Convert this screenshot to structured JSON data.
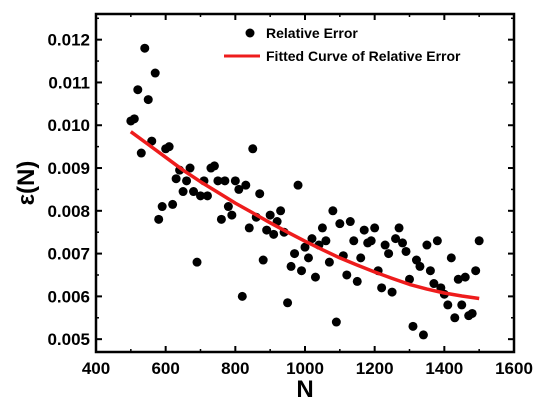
{
  "chart_data": {
    "type": "scatter",
    "xlabel": "N",
    "ylabel": "ε(N)",
    "xlim": [
      400,
      1600
    ],
    "ylim": [
      0.0047,
      0.0126
    ],
    "x_ticks": [
      400,
      600,
      800,
      1000,
      1200,
      1400,
      1600
    ],
    "x_tick_labels": [
      "400",
      "600",
      "800",
      "1000",
      "1200",
      "1400",
      "1600"
    ],
    "y_ticks": [
      0.005,
      0.006,
      0.007,
      0.008,
      0.009,
      0.01,
      0.011,
      0.012
    ],
    "y_tick_labels": [
      "0.005",
      "0.006",
      "0.007",
      "0.008",
      "0.009",
      "0.010",
      "0.011",
      "0.012"
    ],
    "grid": false,
    "legend_position": "top-right",
    "series": [
      {
        "name": "Relative Error",
        "kind": "scatter",
        "color": "#000000",
        "points": [
          [
            500,
            0.0101
          ],
          [
            510,
            0.01015
          ],
          [
            520,
            0.01083
          ],
          [
            530,
            0.00935
          ],
          [
            540,
            0.0118
          ],
          [
            550,
            0.0106
          ],
          [
            560,
            0.00963
          ],
          [
            570,
            0.01122
          ],
          [
            580,
            0.0078
          ],
          [
            590,
            0.0081
          ],
          [
            600,
            0.00945
          ],
          [
            610,
            0.0095
          ],
          [
            620,
            0.00815
          ],
          [
            630,
            0.00875
          ],
          [
            640,
            0.00895
          ],
          [
            650,
            0.00845
          ],
          [
            660,
            0.0087
          ],
          [
            670,
            0.009
          ],
          [
            680,
            0.00845
          ],
          [
            690,
            0.0068
          ],
          [
            700,
            0.00835
          ],
          [
            710,
            0.0087
          ],
          [
            720,
            0.00835
          ],
          [
            730,
            0.009
          ],
          [
            740,
            0.00905
          ],
          [
            750,
            0.0087
          ],
          [
            760,
            0.0078
          ],
          [
            770,
            0.0087
          ],
          [
            780,
            0.0081
          ],
          [
            790,
            0.0079
          ],
          [
            800,
            0.0087
          ],
          [
            810,
            0.0085
          ],
          [
            820,
            0.006
          ],
          [
            830,
            0.0086
          ],
          [
            840,
            0.0076
          ],
          [
            850,
            0.00945
          ],
          [
            860,
            0.00785
          ],
          [
            870,
            0.0084
          ],
          [
            880,
            0.00685
          ],
          [
            890,
            0.00755
          ],
          [
            900,
            0.0079
          ],
          [
            910,
            0.00745
          ],
          [
            920,
            0.00775
          ],
          [
            930,
            0.008
          ],
          [
            940,
            0.0075
          ],
          [
            950,
            0.00585
          ],
          [
            960,
            0.0067
          ],
          [
            970,
            0.007
          ],
          [
            980,
            0.0086
          ],
          [
            990,
            0.0066
          ],
          [
            1000,
            0.00715
          ],
          [
            1010,
            0.0069
          ],
          [
            1020,
            0.00735
          ],
          [
            1030,
            0.00645
          ],
          [
            1040,
            0.0072
          ],
          [
            1050,
            0.0076
          ],
          [
            1060,
            0.0073
          ],
          [
            1070,
            0.0068
          ],
          [
            1080,
            0.008
          ],
          [
            1090,
            0.0054
          ],
          [
            1100,
            0.0077
          ],
          [
            1110,
            0.00695
          ],
          [
            1120,
            0.0065
          ],
          [
            1130,
            0.00775
          ],
          [
            1140,
            0.0073
          ],
          [
            1150,
            0.00635
          ],
          [
            1160,
            0.0069
          ],
          [
            1170,
            0.00755
          ],
          [
            1180,
            0.00725
          ],
          [
            1190,
            0.0073
          ],
          [
            1200,
            0.0076
          ],
          [
            1210,
            0.0066
          ],
          [
            1220,
            0.0062
          ],
          [
            1230,
            0.0072
          ],
          [
            1240,
            0.007
          ],
          [
            1250,
            0.0061
          ],
          [
            1260,
            0.00735
          ],
          [
            1270,
            0.0076
          ],
          [
            1280,
            0.00725
          ],
          [
            1290,
            0.00705
          ],
          [
            1300,
            0.0064
          ],
          [
            1310,
            0.0053
          ],
          [
            1320,
            0.00685
          ],
          [
            1330,
            0.0067
          ],
          [
            1340,
            0.0051
          ],
          [
            1350,
            0.0072
          ],
          [
            1360,
            0.0066
          ],
          [
            1370,
            0.0063
          ],
          [
            1380,
            0.0073
          ],
          [
            1390,
            0.0062
          ],
          [
            1400,
            0.00605
          ],
          [
            1410,
            0.0058
          ],
          [
            1420,
            0.0069
          ],
          [
            1430,
            0.0055
          ],
          [
            1440,
            0.0064
          ],
          [
            1450,
            0.0058
          ],
          [
            1460,
            0.00645
          ],
          [
            1470,
            0.00555
          ],
          [
            1480,
            0.0056
          ],
          [
            1490,
            0.0066
          ],
          [
            1500,
            0.0073
          ]
        ]
      },
      {
        "name": "Fitted Curve of Relative Error",
        "kind": "line",
        "color": "#ee1c1c",
        "points": [
          [
            500,
            0.00985
          ],
          [
            550,
            0.00955
          ],
          [
            600,
            0.00925
          ],
          [
            650,
            0.00895
          ],
          [
            700,
            0.00868
          ],
          [
            750,
            0.00843
          ],
          [
            800,
            0.00818
          ],
          [
            850,
            0.00795
          ],
          [
            900,
            0.00772
          ],
          [
            950,
            0.0075
          ],
          [
            1000,
            0.00729
          ],
          [
            1050,
            0.00709
          ],
          [
            1100,
            0.0069
          ],
          [
            1150,
            0.00673
          ],
          [
            1200,
            0.00657
          ],
          [
            1250,
            0.00642
          ],
          [
            1300,
            0.00628
          ],
          [
            1350,
            0.00617
          ],
          [
            1400,
            0.00608
          ],
          [
            1450,
            0.00601
          ],
          [
            1500,
            0.00595
          ]
        ]
      }
    ]
  }
}
